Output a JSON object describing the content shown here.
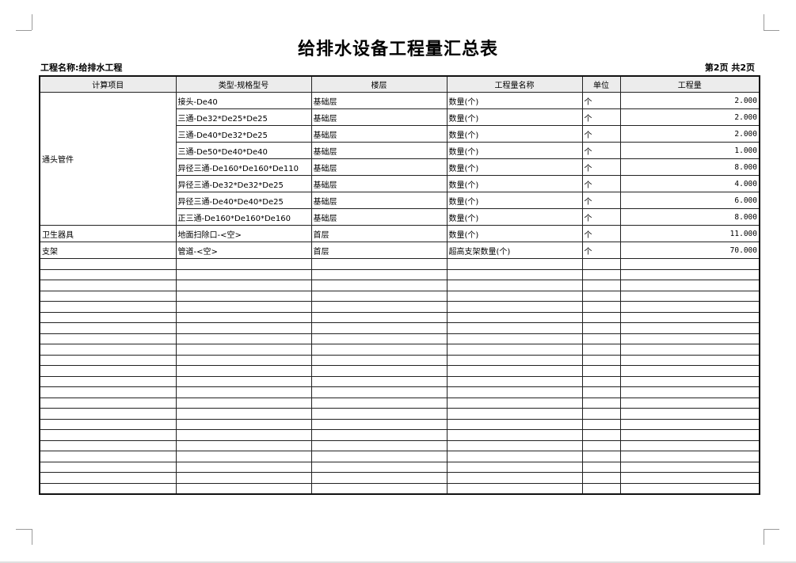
{
  "title": "给排水设备工程量汇总表",
  "project_label": "工程名称:给排水工程",
  "page_info": "第2页  共2页",
  "columns": [
    "计算项目",
    "类型-规格型号",
    "楼层",
    "工程量名称",
    "单位",
    "工程量"
  ],
  "groups": [
    {
      "item": "通头管件",
      "rows": [
        {
          "spec": "接头-De40",
          "floor": "基础层",
          "name": "数量(个)",
          "unit": "个",
          "qty": "2.000"
        },
        {
          "spec": "三通-De32*De25*De25",
          "floor": "基础层",
          "name": "数量(个)",
          "unit": "个",
          "qty": "2.000"
        },
        {
          "spec": "三通-De40*De32*De25",
          "floor": "基础层",
          "name": "数量(个)",
          "unit": "个",
          "qty": "2.000"
        },
        {
          "spec": "三通-De50*De40*De40",
          "floor": "基础层",
          "name": "数量(个)",
          "unit": "个",
          "qty": "1.000"
        },
        {
          "spec": "异径三通-De160*De160*De110",
          "floor": "基础层",
          "name": "数量(个)",
          "unit": "个",
          "qty": "8.000"
        },
        {
          "spec": "异径三通-De32*De32*De25",
          "floor": "基础层",
          "name": "数量(个)",
          "unit": "个",
          "qty": "4.000"
        },
        {
          "spec": "异径三通-De40*De40*De25",
          "floor": "基础层",
          "name": "数量(个)",
          "unit": "个",
          "qty": "6.000"
        },
        {
          "spec": "正三通-De160*De160*De160",
          "floor": "基础层",
          "name": "数量(个)",
          "unit": "个",
          "qty": "8.000"
        }
      ]
    },
    {
      "item": "卫生器具",
      "rows": [
        {
          "spec": "地面扫除口-<空>",
          "floor": "首层",
          "name": "数量(个)",
          "unit": "个",
          "qty": "11.000"
        }
      ]
    },
    {
      "item": "支架",
      "rows": [
        {
          "spec": "管道-<空>",
          "floor": "首层",
          "name": "超高支架数量(个)",
          "unit": "个",
          "qty": "70.000"
        }
      ]
    }
  ]
}
